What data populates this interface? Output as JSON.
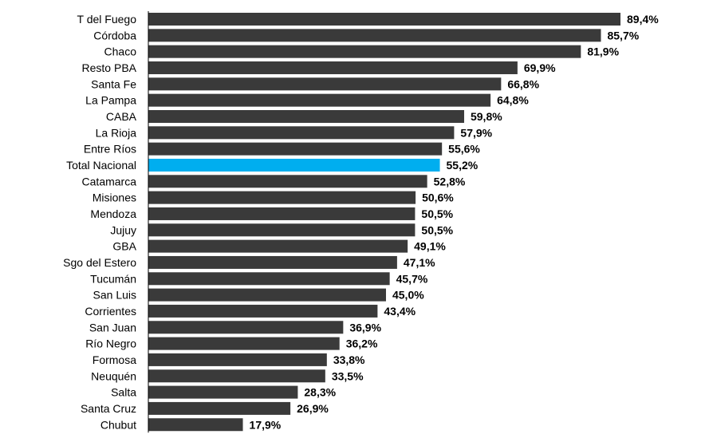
{
  "colors": {
    "bar": "#3a3a3a",
    "highlight": "#00aeef"
  },
  "chart_data": {
    "type": "bar",
    "orientation": "horizontal",
    "title": "",
    "xlabel": "",
    "ylabel": "",
    "xlim": [
      0,
      89.4
    ],
    "grid": false,
    "legend": "none",
    "highlight_category": "Total Nacional",
    "categories": [
      "T del Fuego",
      "Córdoba",
      "Chaco",
      "Resto PBA",
      "Santa Fe",
      "La Pampa",
      "CABA",
      "La Rioja",
      "Entre Ríos",
      "Total Nacional",
      "Catamarca",
      "Misiones",
      "Mendoza",
      "Jujuy",
      "GBA",
      "Sgo del Estero",
      "Tucumán",
      "San Luis",
      "Corrientes",
      "San Juan",
      "Río Negro",
      "Formosa",
      "Neuquén",
      "Salta",
      "Santa Cruz",
      "Chubut"
    ],
    "values": [
      89.4,
      85.7,
      81.9,
      69.9,
      66.8,
      64.8,
      59.8,
      57.9,
      55.6,
      55.2,
      52.8,
      50.6,
      50.5,
      50.5,
      49.1,
      47.1,
      45.7,
      45.0,
      43.4,
      36.9,
      36.2,
      33.8,
      33.5,
      28.3,
      26.9,
      17.9
    ],
    "value_labels": [
      "89,4%",
      "85,7%",
      "81,9%",
      "69,9%",
      "66,8%",
      "64,8%",
      "59,8%",
      "57,9%",
      "55,6%",
      "55,2%",
      "52,8%",
      "50,6%",
      "50,5%",
      "50,5%",
      "49,1%",
      "47,1%",
      "45,7%",
      "45,0%",
      "43,4%",
      "36,9%",
      "36,2%",
      "33,8%",
      "33,5%",
      "28,3%",
      "26,9%",
      "17,9%"
    ]
  }
}
